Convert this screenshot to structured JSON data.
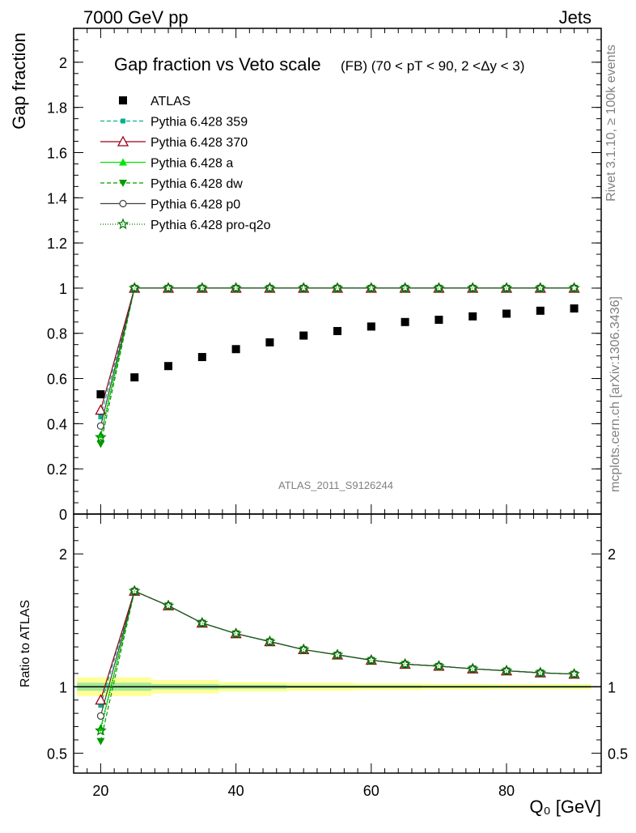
{
  "header": {
    "left": "7000 GeV pp",
    "right": "Jets"
  },
  "side": {
    "rivet": "Rivet 3.1.10, ≥ 100k events",
    "mcplots": "mcplots.cern.ch [arXiv:1306.3436]"
  },
  "watermark": "ATLAS_2011_S9126244",
  "chart_data": [
    {
      "type": "scatter",
      "panel": "main",
      "title": "Gap fraction vs Veto scale",
      "subtitle": "(FB)  (70 < pT <  90, 2 <Δy < 3)",
      "ylabel": "Gap fraction",
      "xlabel": "",
      "xlim": [
        16,
        94
      ],
      "ylim": [
        0,
        2.15
      ],
      "yticks": [
        0,
        0.2,
        0.4,
        0.6,
        0.8,
        1,
        1.2,
        1.4,
        1.6,
        1.8,
        2
      ],
      "ytick_labels": [
        "0",
        "0.2",
        "0.4",
        "0.6",
        "0.8",
        "1",
        "1.2",
        "1.4",
        "1.6",
        "1.8",
        "2"
      ],
      "x": [
        20,
        25,
        30,
        35,
        40,
        45,
        50,
        55,
        60,
        65,
        70,
        75,
        80,
        85,
        90
      ],
      "data": {
        "name": "ATLAS",
        "values": [
          0.53,
          0.605,
          0.655,
          0.695,
          0.73,
          0.76,
          0.79,
          0.81,
          0.83,
          0.85,
          0.86,
          0.875,
          0.887,
          0.9,
          0.91
        ]
      },
      "series": [
        {
          "name": "Pythia 6.428 359",
          "color": "#00b28c",
          "dash": "5,3",
          "marker": "square-small",
          "values": [
            0.43,
            1,
            1,
            1,
            1,
            1,
            1,
            1,
            1,
            1,
            1,
            1,
            1,
            1,
            1
          ]
        },
        {
          "name": "Pythia 6.428 370",
          "color": "#99001a",
          "dash": "",
          "marker": "triangle-open",
          "values": [
            0.46,
            1,
            1,
            1,
            1,
            1,
            1,
            1,
            1,
            1,
            1,
            1,
            1,
            1,
            1
          ]
        },
        {
          "name": "Pythia 6.428 a",
          "color": "#00e600",
          "dash": "",
          "marker": "triangle",
          "values": [
            0.35,
            1,
            1,
            1,
            1,
            1,
            1,
            1,
            1,
            1,
            1,
            1,
            1,
            1,
            1
          ]
        },
        {
          "name": "Pythia 6.428 dw",
          "color": "#009900",
          "dash": "5,3",
          "marker": "triangle-down",
          "values": [
            0.31,
            1,
            1,
            1,
            1,
            1,
            1,
            1,
            1,
            1,
            1,
            1,
            1,
            1,
            1
          ]
        },
        {
          "name": "Pythia 6.428 p0",
          "color": "#404040",
          "dash": "",
          "marker": "circle-open",
          "values": [
            0.39,
            1,
            1,
            1,
            1,
            1,
            1,
            1,
            1,
            1,
            1,
            1,
            1,
            1,
            1
          ]
        },
        {
          "name": "Pythia 6.428 pro-q2o",
          "color": "#007a00",
          "dash": "1,2",
          "marker": "star",
          "values": [
            0.34,
            1,
            1,
            1,
            1,
            1,
            1,
            1,
            1,
            1,
            1,
            1,
            1,
            1,
            1
          ]
        }
      ]
    },
    {
      "type": "scatter",
      "panel": "ratio",
      "ylabel": "Ratio to ATLAS",
      "xlabel": "Q₀ [GeV]",
      "xlim": [
        16,
        94
      ],
      "ylim": [
        0.35,
        2.3
      ],
      "yticks": [
        0.5,
        1,
        2
      ],
      "ytick_labels": [
        "0.5",
        "1",
        "2"
      ],
      "xticks": [
        20,
        40,
        60,
        80
      ],
      "xtick_labels": [
        "20",
        "40",
        "60",
        "80"
      ],
      "x": [
        20,
        25,
        30,
        35,
        40,
        45,
        50,
        55,
        60,
        65,
        70,
        75,
        80,
        85,
        90
      ],
      "band_inner": [
        0.03,
        0.03,
        0.02,
        0.02,
        0.015,
        0.015,
        0.01,
        0.01,
        0.01,
        0.01,
        0.008,
        0.008,
        0.008,
        0.008,
        0.008
      ],
      "band_outer": [
        0.07,
        0.07,
        0.05,
        0.05,
        0.035,
        0.035,
        0.03,
        0.03,
        0.025,
        0.025,
        0.022,
        0.022,
        0.02,
        0.02,
        0.02
      ],
      "series": [
        {
          "name": "Pythia 6.428 359",
          "values": [
            0.86,
            1.72,
            1.61,
            1.48,
            1.4,
            1.34,
            1.28,
            1.24,
            1.2,
            1.17,
            1.155,
            1.135,
            1.12,
            1.105,
            1.095
          ]
        },
        {
          "name": "Pythia 6.428 370",
          "values": [
            0.9,
            1.72,
            1.61,
            1.48,
            1.4,
            1.34,
            1.28,
            1.24,
            1.2,
            1.17,
            1.155,
            1.135,
            1.12,
            1.105,
            1.095
          ]
        },
        {
          "name": "Pythia 6.428 a",
          "values": [
            0.69,
            1.72,
            1.61,
            1.48,
            1.4,
            1.34,
            1.28,
            1.24,
            1.2,
            1.17,
            1.155,
            1.135,
            1.12,
            1.105,
            1.095
          ]
        },
        {
          "name": "Pythia 6.428 dw",
          "values": [
            0.59,
            1.72,
            1.61,
            1.48,
            1.4,
            1.34,
            1.28,
            1.24,
            1.2,
            1.17,
            1.155,
            1.135,
            1.12,
            1.105,
            1.095
          ]
        },
        {
          "name": "Pythia 6.428 p0",
          "values": [
            0.78,
            1.72,
            1.61,
            1.48,
            1.4,
            1.34,
            1.28,
            1.24,
            1.2,
            1.17,
            1.155,
            1.135,
            1.12,
            1.105,
            1.095
          ]
        },
        {
          "name": "Pythia 6.428 pro-q2o",
          "values": [
            0.67,
            1.72,
            1.61,
            1.48,
            1.4,
            1.34,
            1.28,
            1.24,
            1.2,
            1.17,
            1.155,
            1.135,
            1.12,
            1.105,
            1.095
          ]
        }
      ]
    }
  ]
}
